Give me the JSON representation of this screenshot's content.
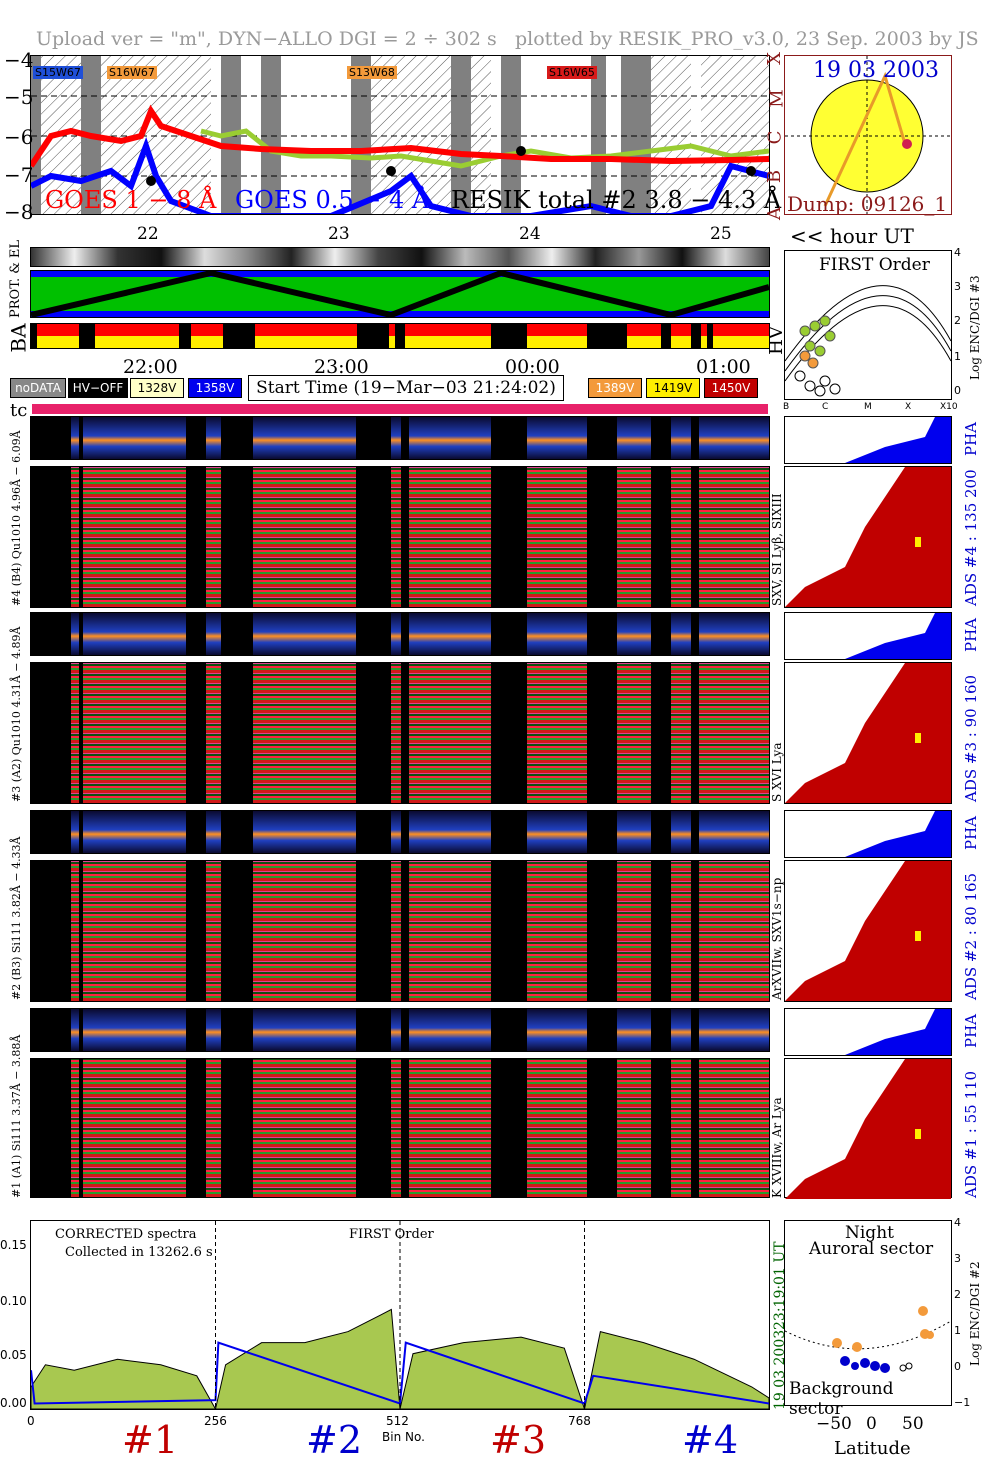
{
  "header": {
    "left": "Upload ver = \"m\", DYN−ALLO DGI =   2 ÷ 302 s",
    "right": "plotted by RESIK_PRO_v3.0, 23 Sep. 2003 by JS"
  },
  "goes": {
    "y_ticks": [
      "−4",
      "−5",
      "−6",
      "−7",
      "−8"
    ],
    "classes": [
      "X",
      "M",
      "C",
      "B",
      "A"
    ],
    "orbit_labels": [
      "S15W67",
      "S16W67",
      "S13W68",
      "S16W65"
    ],
    "legend_goes_long": "GOES 1 − 8 Å",
    "legend_goes_short": "GOES 0.5 − 4 Å",
    "legend_resik": "RESIK  total #2  3.8 − 4.3 Å",
    "x_ticks": [
      "22",
      "23",
      "24",
      "25"
    ],
    "hour_label": "<< hour UT",
    "colors": {
      "long": "#ff0000",
      "short": "#0000ff",
      "resik": "#9acd32",
      "night": "#808080"
    }
  },
  "sun": {
    "date": "19 03 2003",
    "dump": "Dump: 09126_1"
  },
  "status": {
    "labels": [
      "PROT. & EL",
      "BA",
      "HV"
    ],
    "time_ticks": [
      "22:00",
      "23:00",
      "00:00",
      "01:00"
    ]
  },
  "legend": {
    "nodata": "noDATA",
    "hvoff": "HV−OFF",
    "v1": "1328V",
    "v2": "1358V",
    "start": "Start Time (19−Mar−03 21:24:02)",
    "v3": "1389V",
    "v4": "1419V",
    "v5": "1450V",
    "tc": "tc"
  },
  "first_order": {
    "title": "FIRST Order",
    "ylabel": "Log ENC/DGI #3",
    "y_ticks": [
      "4",
      "3",
      "2",
      "1",
      "0"
    ],
    "x_ticks": [
      "B",
      "C",
      "M",
      "X",
      "X10"
    ]
  },
  "channels": [
    {
      "pha_label": "#4 (B4) Qu1010 4.96Å − 6.09Å",
      "left_label": "SXV, SI Lyβ, SIXIII",
      "ads_label": "ADS #4 :   135 200",
      "pha": "PHA"
    },
    {
      "pha_label": "#3 (A2) Qu1010 4.31Å − 4.89Å",
      "left_label": "S XVI Lya",
      "ads_label": "ADS #3 :    90 160",
      "pha": "PHA"
    },
    {
      "pha_label": "#2 (B3) Si111 3.82Å − 4.33Å",
      "left_label": "ArXVIIw, SXV1s−np",
      "ads_label": "ADS #2 :    80 165",
      "pha": "PHA"
    },
    {
      "pha_label": "#1 (A1) Si111 3.37Å − 3.88Å",
      "left_label": "K XVIIIw, Ar Lya",
      "ads_label": "ADS #1 :    55 110",
      "pha": "PHA"
    }
  ],
  "spectrum": {
    "note1": "CORRECTED spectra",
    "note2": "Collected in 13262.6 s",
    "order": "FIRST Order",
    "y_ticks": [
      "0.15",
      "0.10",
      "0.05",
      "0.00"
    ],
    "x_ticks": [
      "0",
      "256",
      "512",
      "768"
    ],
    "xlabel": "Bin No.",
    "right_time": "23:19:01 UT",
    "right_date": "19 03 2003",
    "sections": [
      "#1",
      "#2",
      "#3",
      "#4"
    ]
  },
  "lat": {
    "title1": "Night",
    "title2": "Auroral sector",
    "bottom": "Background sector",
    "ylabel": "Log ENC/DGI #2",
    "y_ticks": [
      "4",
      "3",
      "2",
      "1",
      "0",
      "−1"
    ],
    "x_ticks": [
      "−50",
      "0",
      "50"
    ],
    "xlabel": "Latitude"
  },
  "chart_data": {
    "type": "line",
    "title": "CORRECTED spectra",
    "xlabel": "Bin No.",
    "ylabel": "",
    "xlim": [
      0,
      1024
    ],
    "ylim": [
      0,
      0.17
    ],
    "series": [
      {
        "x": [
          0,
          20,
          60,
          120,
          180,
          230,
          256,
          270,
          320,
          380,
          440,
          500,
          512,
          530,
          600,
          680,
          740,
          768,
          790,
          850,
          920,
          1000,
          1024
        ],
        "values": [
          0.02,
          0.04,
          0.035,
          0.045,
          0.04,
          0.03,
          0.0,
          0.04,
          0.06,
          0.06,
          0.07,
          0.09,
          0.0,
          0.05,
          0.06,
          0.065,
          0.055,
          0.0,
          0.07,
          0.06,
          0.045,
          0.02,
          0.01
        ]
      },
      {
        "x": [
          0,
          5,
          256,
          260,
          512,
          520,
          768,
          780,
          1024
        ],
        "values": [
          0.035,
          0.005,
          0.008,
          0.06,
          0.005,
          0.06,
          0.005,
          0.03,
          0.005
        ]
      }
    ]
  }
}
